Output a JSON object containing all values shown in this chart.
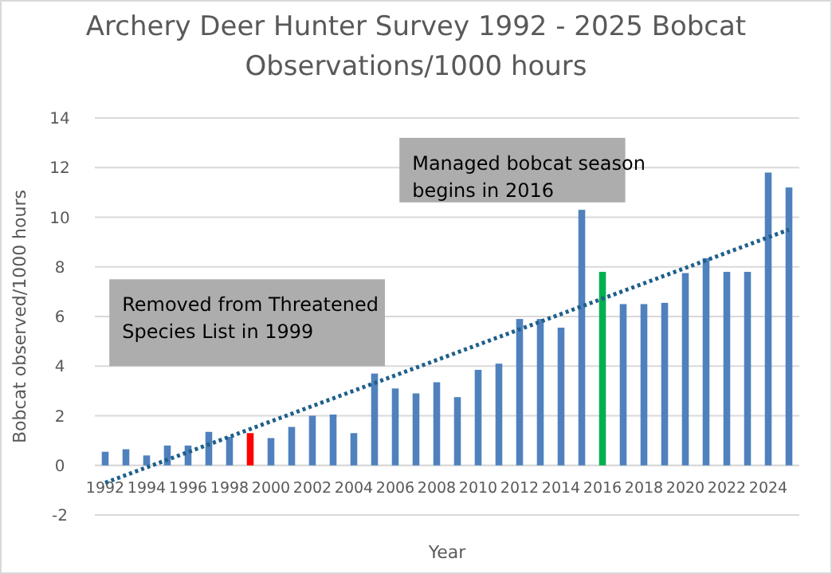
{
  "chart_data": {
    "type": "bar",
    "title": "Archery Deer Hunter Survey 1992 - 2025 Bobcat Observations/1000 hours",
    "xlabel": "Year",
    "ylabel": "Bobcat observed/1000 hours",
    "x": [
      1992,
      1993,
      1994,
      1995,
      1996,
      1997,
      1998,
      1999,
      2000,
      2001,
      2002,
      2003,
      2004,
      2005,
      2006,
      2007,
      2008,
      2009,
      2010,
      2011,
      2012,
      2013,
      2014,
      2015,
      2016,
      2017,
      2018,
      2019,
      2020,
      2021,
      2022,
      2023,
      2024,
      2025
    ],
    "series": [
      {
        "values": [
          0.55,
          0.65,
          0.4,
          0.8,
          0.8,
          1.35,
          1.15,
          1.3,
          1.1,
          1.55,
          2.0,
          2.05,
          1.3,
          3.7,
          3.1,
          2.9,
          3.35,
          2.75,
          3.85,
          4.1,
          5.9,
          5.9,
          5.55,
          10.3,
          7.8,
          6.5,
          6.5,
          6.55,
          7.75,
          8.35,
          7.8,
          7.8,
          11.8,
          11.2
        ],
        "colors": [
          "#4f81bd",
          "#4f81bd",
          "#4f81bd",
          "#4f81bd",
          "#4f81bd",
          "#4f81bd",
          "#4f81bd",
          "#ff0000",
          "#4f81bd",
          "#4f81bd",
          "#4f81bd",
          "#4f81bd",
          "#4f81bd",
          "#4f81bd",
          "#4f81bd",
          "#4f81bd",
          "#4f81bd",
          "#4f81bd",
          "#4f81bd",
          "#4f81bd",
          "#4f81bd",
          "#4f81bd",
          "#4f81bd",
          "#4f81bd",
          "#00b050",
          "#4f81bd",
          "#4f81bd",
          "#4f81bd",
          "#4f81bd",
          "#4f81bd",
          "#4f81bd",
          "#4f81bd",
          "#4f81bd",
          "#4f81bd"
        ]
      },
      {
        "type": "line",
        "color": "#1f5f8b",
        "line_style": "dotted",
        "x": [
          1992,
          2025
        ],
        "values": [
          -0.7,
          9.5
        ]
      }
    ],
    "xlim": [
      1991.5,
      2025.5
    ],
    "xticks": [
      1992,
      1994,
      1996,
      1998,
      2000,
      2002,
      2004,
      2006,
      2008,
      2010,
      2012,
      2014,
      2016,
      2018,
      2020,
      2022,
      2024
    ],
    "ylim": [
      -2,
      14
    ],
    "yticks": [
      -2,
      0,
      2,
      4,
      6,
      8,
      10,
      12,
      14
    ],
    "grid": "y",
    "annotations": [
      "Removed from Threatened Species List in 1999",
      "Managed bobcat season begins in 2016"
    ]
  }
}
